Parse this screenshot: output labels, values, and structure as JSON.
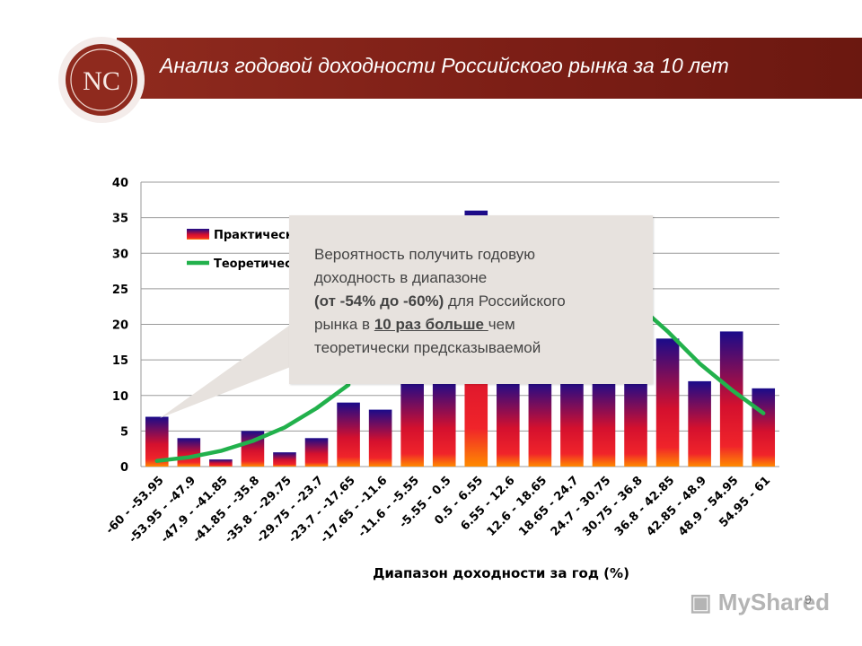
{
  "header": {
    "title": "Анализ годовой доходности Российского рынка за 10 лет",
    "logo_text": "NC"
  },
  "callout": {
    "line1": "Вероятность получить годовую",
    "line2": "доходность в диапазоне",
    "line3_bold": "(от -54% до -60%)",
    "line3_rest": " для Российского",
    "line4_start": "рынка в ",
    "line4_underlined": "10 раз больше ",
    "line4_end": "чем",
    "line5": "теоретически предсказываемой"
  },
  "watermark": "MyShared",
  "page_number": "9",
  "colors": {
    "header": "#7a1d15",
    "bar_top": "#1a0b8a",
    "bar_mid": "#e0102a",
    "bar_bottom": "#ff7a00",
    "theoretical_line": "#22b14c"
  },
  "chart_data": {
    "type": "bar",
    "categories": [
      "-60 - -53.95",
      "-53.95 - -47.9",
      "-47.9 - -41.85",
      "-41.85 - -35.8",
      "-35.8 - -29.75",
      "-29.75 - -23.7",
      "-23.7 - -17.65",
      "-17.65 - -11.6",
      "-11.6 - -5.55",
      "-5.55 - 0.5",
      "0.5 - 6.55",
      "6.55 - 12.6",
      "12.6 - 18.65",
      "18.65 - 24.7",
      "24.7 - 30.75",
      "30.75 - 36.8",
      "36.8 - 42.85",
      "42.85 - 48.9",
      "48.9 - 54.95",
      "54.95 - 61"
    ],
    "series": [
      {
        "name": "Практическ",
        "kind": "bar",
        "values": [
          7,
          4,
          1,
          5,
          2,
          4,
          9,
          8,
          12,
          12,
          36,
          12,
          12,
          12,
          12,
          12,
          18,
          12,
          19,
          11
        ]
      },
      {
        "name": "Теоретичес",
        "kind": "line",
        "values": [
          0.8,
          1.3,
          2.2,
          3.6,
          5.5,
          8.2,
          11.5,
          null,
          null,
          null,
          null,
          null,
          null,
          null,
          null,
          23,
          19,
          14.5,
          10.8,
          7.5
        ]
      }
    ],
    "xlabel": "Диапазон доходности за год (%)",
    "ylabel": "",
    "ylim": [
      0,
      40
    ],
    "yticks": [
      "0",
      "5",
      "10",
      "15",
      "20",
      "25",
      "30",
      "35",
      "40"
    ],
    "grid": true,
    "legend_position": "top-left"
  }
}
